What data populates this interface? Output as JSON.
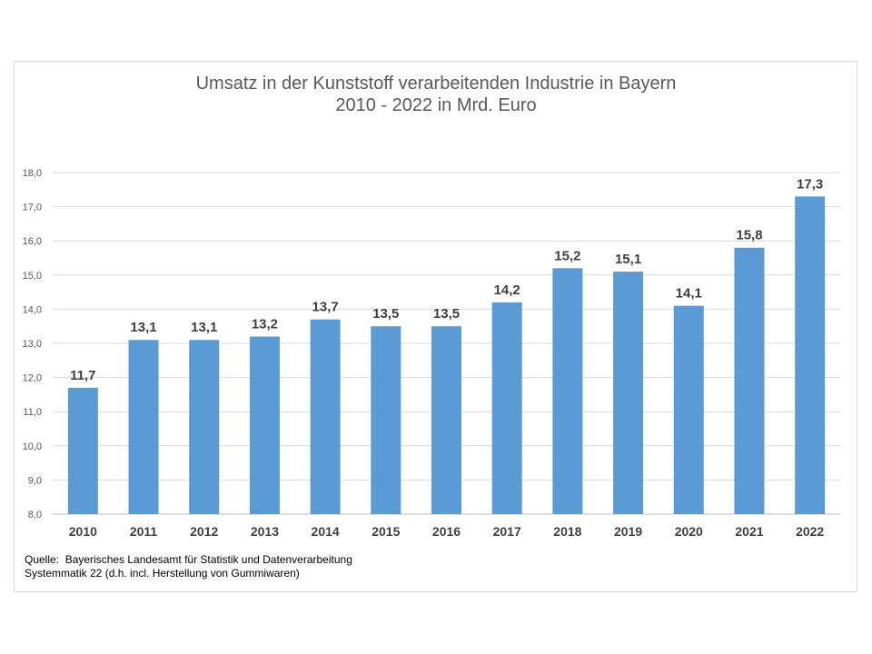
{
  "chart_data": {
    "type": "bar",
    "title": "Umsatz in der Kunststoff verarbeitenden Industrie in Bayern",
    "subtitle": "2010 - 2022 in Mrd. Euro",
    "xlabel": "",
    "ylabel": "",
    "categories": [
      "2010",
      "2011",
      "2012",
      "2013",
      "2014",
      "2015",
      "2016",
      "2017",
      "2018",
      "2019",
      "2020",
      "2021",
      "2022"
    ],
    "values": [
      11.7,
      13.1,
      13.1,
      13.2,
      13.7,
      13.5,
      13.5,
      14.2,
      15.2,
      15.1,
      14.1,
      15.8,
      17.3
    ],
    "data_labels": [
      "11,7",
      "13,1",
      "13,1",
      "13,2",
      "13,7",
      "13,5",
      "13,5",
      "14,2",
      "15,2",
      "15,1",
      "14,1",
      "15,8",
      "17,3"
    ],
    "ylim": [
      8,
      18
    ],
    "yticks": [
      "8,0",
      "9,0",
      "10,0",
      "11,0",
      "12,0",
      "13,0",
      "14,0",
      "15,0",
      "16,0",
      "17,0",
      "18,0"
    ],
    "grid": true,
    "legend": "none",
    "bar_color": "#5b9bd5"
  },
  "source": {
    "line1": "Quelle:  Bayerisches Landesamt für Statistik und Datenverarbeitung",
    "line2": "Systemmatik 22 (d.h. incl. Herstellung von Gummiwaren)"
  }
}
